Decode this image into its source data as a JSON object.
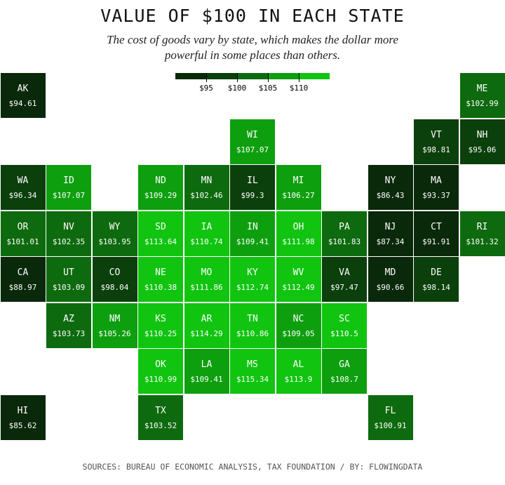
{
  "chart_data": {
    "type": "tilemap",
    "title": "VALUE OF $100 IN EACH STATE",
    "subtitle": "The cost of goods vary by state, which makes the dollar more powerful in some places than others.",
    "source": "SOURCES: BUREAU OF ECONOMIC ANALYSIS, TAX FOUNDATION / BY: FLOWINGDATA",
    "categories": [
      "AK",
      "ME",
      "WI",
      "VT",
      "NH",
      "WA",
      "ID",
      "ND",
      "MN",
      "IL",
      "MI",
      "NY",
      "MA",
      "OR",
      "NV",
      "WY",
      "SD",
      "IA",
      "IN",
      "OH",
      "PA",
      "NJ",
      "CT",
      "RI",
      "CA",
      "UT",
      "CO",
      "NE",
      "MO",
      "KY",
      "WV",
      "VA",
      "MD",
      "DE",
      "AZ",
      "NM",
      "KS",
      "AR",
      "TN",
      "NC",
      "SC",
      "OK",
      "LA",
      "MS",
      "AL",
      "GA",
      "HI",
      "TX",
      "FL"
    ],
    "values": [
      94.61,
      102.99,
      107.07,
      98.81,
      95.06,
      96.34,
      107.07,
      109.29,
      102.46,
      99.3,
      106.27,
      86.43,
      93.37,
      101.01,
      102.35,
      103.95,
      113.64,
      110.74,
      109.41,
      111.98,
      101.83,
      87.34,
      91.91,
      101.32,
      88.97,
      103.09,
      98.04,
      110.38,
      111.86,
      112.74,
      112.49,
      97.47,
      90.66,
      98.14,
      103.73,
      105.26,
      110.25,
      114.29,
      110.86,
      109.05,
      110.5,
      110.99,
      109.41,
      115.34,
      113.9,
      108.7,
      85.62,
      103.52,
      100.91
    ],
    "value_labels": [
      "$94.61",
      "$102.99",
      "$107.07",
      "$98.81",
      "$95.06",
      "$96.34",
      "$107.07",
      "$109.29",
      "$102.46",
      "$99.3",
      "$106.27",
      "$86.43",
      "$93.37",
      "$101.01",
      "$102.35",
      "$103.95",
      "$113.64",
      "$110.74",
      "$109.41",
      "$111.98",
      "$101.83",
      "$87.34",
      "$91.91",
      "$101.32",
      "$88.97",
      "$103.09",
      "$98.04",
      "$110.38",
      "$111.86",
      "$112.74",
      "$112.49",
      "$97.47",
      "$90.66",
      "$98.14",
      "$103.73",
      "$105.26",
      "$110.25",
      "$114.29",
      "$110.86",
      "$109.05",
      "$110.5",
      "$110.99",
      "$109.41",
      "$115.34",
      "$113.9",
      "$108.7",
      "$85.62",
      "$103.52",
      "$100.91"
    ],
    "legend": {
      "colors": [
        "#0a280a",
        "#0b3f0b",
        "#0e6a0e",
        "#0e9f0f",
        "#10c410"
      ],
      "ticks": [
        {
          "value": 95,
          "label": "$95"
        },
        {
          "value": 100,
          "label": "$100"
        },
        {
          "value": 105,
          "label": "$105"
        },
        {
          "value": 110,
          "label": "$110"
        }
      ]
    }
  }
}
